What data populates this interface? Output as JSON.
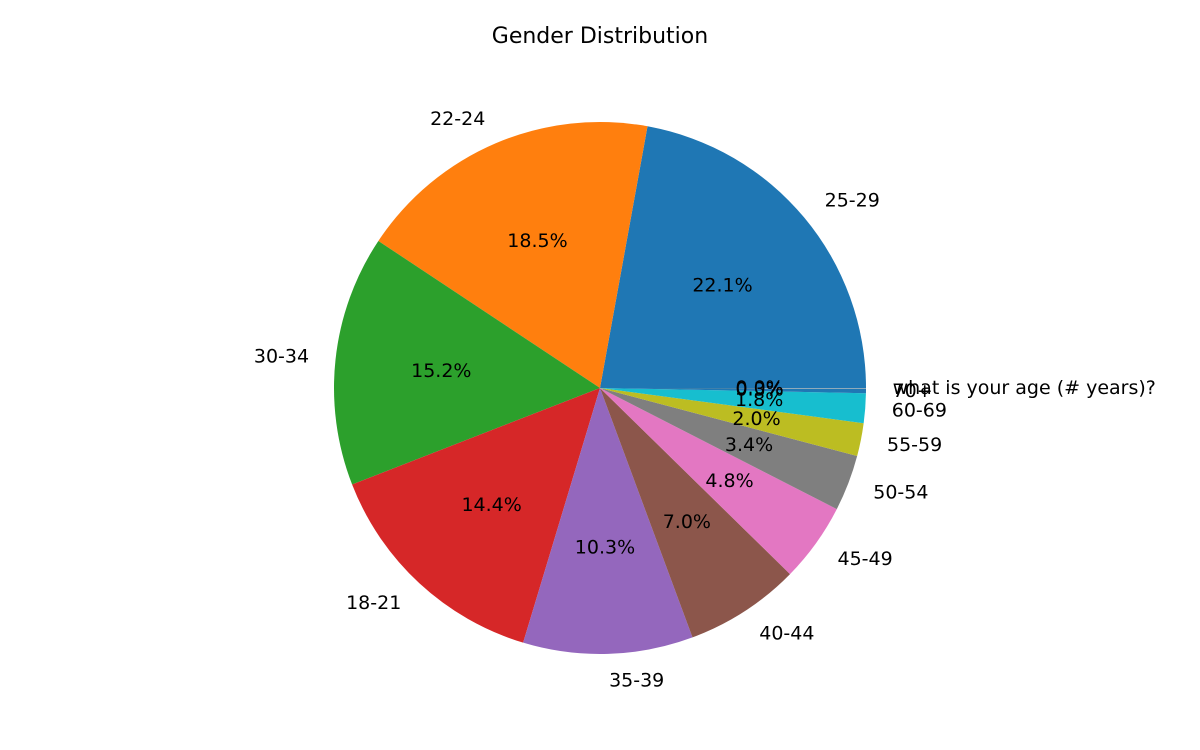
{
  "chart_data": {
    "type": "pie",
    "title": "Gender Distribution",
    "start_angle_deg": 0,
    "direction": "counterclockwise",
    "slices": [
      {
        "label": "25-29",
        "value": 22.1,
        "pct_text": "22.1%",
        "color": "#1f77b4"
      },
      {
        "label": "22-24",
        "value": 18.5,
        "pct_text": "18.5%",
        "color": "#ff7f0e"
      },
      {
        "label": "30-34",
        "value": 15.2,
        "pct_text": "15.2%",
        "color": "#2ca02c"
      },
      {
        "label": "18-21",
        "value": 14.4,
        "pct_text": "14.4%",
        "color": "#d62728"
      },
      {
        "label": "35-39",
        "value": 10.3,
        "pct_text": "10.3%",
        "color": "#9467bd"
      },
      {
        "label": "40-44",
        "value": 7.0,
        "pct_text": "7.0%",
        "color": "#8c564b"
      },
      {
        "label": "45-49",
        "value": 4.8,
        "pct_text": "4.8%",
        "color": "#e377c2"
      },
      {
        "label": "50-54",
        "value": 3.4,
        "pct_text": "3.4%",
        "color": "#7f7f7f"
      },
      {
        "label": "55-59",
        "value": 2.0,
        "pct_text": "2.0%",
        "color": "#bcbd22"
      },
      {
        "label": "60-69",
        "value": 1.8,
        "pct_text": "1.8%",
        "color": "#17becf"
      },
      {
        "label": "70+",
        "value": 0.3,
        "pct_text": "0.3%",
        "color": "#1f77b4"
      },
      {
        "label": "what is your age (# years)?",
        "value": 0.01,
        "pct_text": "0.0%",
        "color": "#ff7f0e"
      }
    ]
  }
}
